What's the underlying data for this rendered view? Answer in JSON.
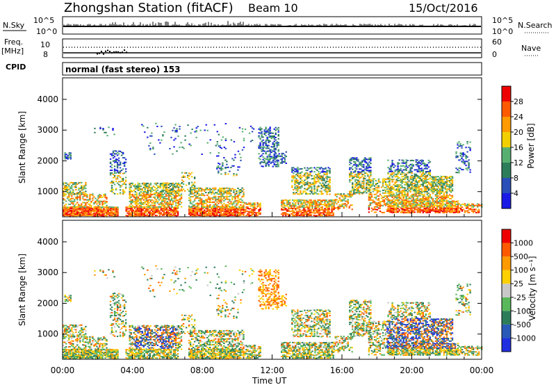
{
  "header": {
    "station": "Zhongshan Station (fitACF)",
    "beam": "Beam 10",
    "date": "15/Oct/2016"
  },
  "strip_panels": {
    "nsky_label": "N.Sky",
    "nsearch_label": "N.Search",
    "nsky_ticks": [
      "10^5",
      "10^0"
    ],
    "nsearch_ticks": [
      "10^5",
      "10^0"
    ],
    "freq_label": "Freq.",
    "freq_unit": "[MHz]",
    "freq_ticks": [
      "10",
      "8"
    ],
    "nave_label": "Nave",
    "nave_ticks": [
      "60",
      "0"
    ],
    "cpid_label": "CPID",
    "cpid_value": "normal (fast stereo) 153"
  },
  "chart_data": [
    {
      "type": "heatmap",
      "name": "power",
      "ylabel": "Slant Range [km]",
      "yticks": [
        "1000",
        "2000",
        "3000",
        "4000"
      ],
      "ylim": [
        180,
        4700
      ],
      "colorbar_label": "Power [dB]",
      "colorbar_ticks": [
        "4",
        "8",
        "12",
        "16",
        "20",
        "24",
        "28"
      ],
      "colors": [
        "#1a1ae6",
        "#2a4fb8",
        "#2e7d5a",
        "#58b070",
        "#f2d000",
        "#ff9a00",
        "#ff5a00",
        "#ee0000"
      ]
    },
    {
      "type": "heatmap",
      "name": "velocity",
      "ylabel": "Slant Range [km]",
      "yticks": [
        "1000",
        "2000",
        "3000",
        "4000"
      ],
      "ylim": [
        180,
        4700
      ],
      "colorbar_label": "Velocity [m s⁻¹]",
      "colorbar_ticks": [
        "1000",
        "500",
        "100",
        "25",
        "-25",
        "-100",
        "-500",
        "-1000"
      ],
      "colors": [
        "#1f2fe0",
        "#2a5ab8",
        "#2e7d5a",
        "#59b85a",
        "#c8c8c8",
        "#ffd000",
        "#ff9a00",
        "#ff5a00",
        "#ee0000"
      ]
    }
  ],
  "time_axis": {
    "label": "Time UT",
    "ticks": [
      "00:00",
      "04:00",
      "08:00",
      "12:00",
      "16:00",
      "20:00",
      "00:00"
    ]
  }
}
